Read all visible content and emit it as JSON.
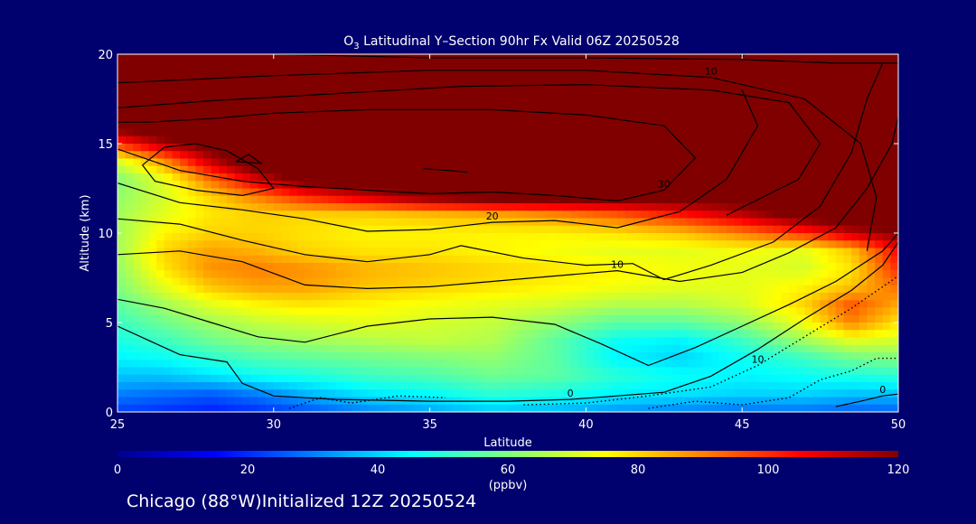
{
  "colors": {
    "background": "#00006e",
    "saturated_high": "#7a0000",
    "contour_line": "#000000"
  },
  "chart_data": {
    "type": "heatmap",
    "title_species": "O",
    "title_subscript": "3",
    "title_rest": " Latitudinal Y–Section 90hr  Fx Valid 06Z 20250528",
    "xlabel": "Latitude",
    "ylabel": "Altitude (km)",
    "xlim": [
      25,
      50
    ],
    "ylim": [
      0,
      20
    ],
    "x_ticks": [
      25,
      30,
      35,
      40,
      45,
      50
    ],
    "x_tick_labels": [
      "25",
      "30",
      "35",
      "40",
      "45",
      "50"
    ],
    "y_ticks": [
      0,
      5,
      10,
      15,
      20
    ],
    "y_tick_labels": [
      "0",
      "5",
      "10",
      "15",
      "20"
    ],
    "colorbar": {
      "min": 0,
      "max": 120,
      "tick_values": [
        0,
        20,
        40,
        60,
        80,
        100,
        120
      ],
      "tick_labels": [
        "0",
        "20",
        "40",
        "60",
        "80",
        "100",
        "120"
      ],
      "unit_label": "(ppbv)"
    },
    "footer": "Chicago (88°W)Initialized 12Z 20250524",
    "field_lat": [
      25,
      26.5,
      28,
      29.5,
      31,
      33,
      35,
      37,
      39,
      41,
      43,
      45,
      47,
      48.5,
      50
    ],
    "field_alt": [
      0,
      1,
      2,
      3,
      4,
      5,
      6,
      7,
      8,
      9,
      10,
      11,
      12,
      13,
      14,
      15,
      16,
      17,
      18,
      19,
      20
    ],
    "field_ppbv": [
      [
        22,
        20,
        18,
        20,
        24,
        30,
        34,
        38,
        36,
        32,
        30,
        28,
        28,
        26,
        26
      ],
      [
        30,
        28,
        26,
        30,
        36,
        42,
        45,
        50,
        48,
        44,
        42,
        40,
        40,
        38,
        38
      ],
      [
        38,
        38,
        42,
        46,
        48,
        52,
        54,
        58,
        56,
        50,
        46,
        44,
        46,
        48,
        50
      ],
      [
        44,
        46,
        50,
        54,
        56,
        58,
        60,
        62,
        56,
        44,
        40,
        46,
        52,
        58,
        60
      ],
      [
        48,
        52,
        58,
        62,
        64,
        66,
        68,
        66,
        56,
        46,
        44,
        52,
        64,
        72,
        70
      ],
      [
        52,
        58,
        64,
        68,
        70,
        72,
        70,
        68,
        62,
        56,
        56,
        62,
        74,
        90,
        78
      ],
      [
        56,
        64,
        72,
        76,
        78,
        76,
        74,
        72,
        70,
        66,
        66,
        70,
        80,
        95,
        85
      ],
      [
        60,
        72,
        82,
        86,
        86,
        82,
        80,
        78,
        76,
        74,
        72,
        72,
        76,
        82,
        92
      ],
      [
        62,
        78,
        88,
        90,
        88,
        84,
        82,
        80,
        78,
        76,
        74,
        72,
        70,
        78,
        100
      ],
      [
        64,
        80,
        86,
        84,
        80,
        78,
        78,
        76,
        74,
        72,
        72,
        74,
        72,
        82,
        105
      ],
      [
        64,
        76,
        80,
        80,
        78,
        76,
        76,
        76,
        76,
        78,
        82,
        90,
        100,
        112,
        120
      ],
      [
        64,
        72,
        78,
        80,
        80,
        80,
        82,
        84,
        88,
        94,
        102,
        112,
        125,
        130,
        130
      ],
      [
        62,
        70,
        80,
        90,
        100,
        110,
        120,
        125,
        125,
        125,
        125,
        125,
        125,
        125,
        125
      ],
      [
        60,
        72,
        92,
        110,
        125,
        130,
        130,
        130,
        130,
        130,
        130,
        130,
        130,
        130,
        130
      ],
      [
        70,
        88,
        112,
        130,
        130,
        130,
        130,
        130,
        130,
        130,
        130,
        130,
        130,
        130,
        130
      ],
      [
        100,
        115,
        125,
        130,
        130,
        130,
        130,
        130,
        130,
        130,
        130,
        130,
        130,
        130,
        130
      ],
      [
        125,
        130,
        130,
        130,
        130,
        130,
        130,
        130,
        130,
        130,
        130,
        130,
        130,
        130,
        130
      ],
      [
        130,
        130,
        130,
        130,
        130,
        130,
        130,
        130,
        130,
        130,
        130,
        130,
        130,
        130,
        130
      ],
      [
        130,
        130,
        130,
        130,
        130,
        130,
        130,
        130,
        130,
        130,
        130,
        130,
        130,
        130,
        130
      ],
      [
        130,
        130,
        130,
        130,
        130,
        130,
        130,
        130,
        130,
        130,
        130,
        130,
        130,
        130,
        130
      ],
      [
        130,
        130,
        130,
        130,
        130,
        130,
        130,
        130,
        130,
        130,
        130,
        130,
        130,
        130,
        130
      ]
    ],
    "contours": [
      {
        "label": "0",
        "style": "solid",
        "points": [
          [
            25,
            4.8
          ],
          [
            26,
            4.0
          ],
          [
            27,
            3.2
          ],
          [
            28.5,
            2.8
          ],
          [
            29,
            1.6
          ],
          [
            30,
            0.9
          ],
          [
            32,
            0.7
          ],
          [
            35,
            0.6
          ],
          [
            37.5,
            0.6
          ],
          [
            39.5,
            0.7
          ],
          [
            41,
            0.9
          ],
          [
            42.5,
            1.1
          ],
          [
            44,
            2.0
          ],
          [
            45.5,
            3.5
          ],
          [
            47,
            5.2
          ],
          [
            48.5,
            6.8
          ],
          [
            49.5,
            8.2
          ],
          [
            50,
            9.5
          ]
        ]
      },
      {
        "label": "",
        "style": "solid",
        "points": [
          [
            25,
            6.3
          ],
          [
            26.5,
            5.8
          ],
          [
            28,
            5.0
          ],
          [
            29.5,
            4.2
          ],
          [
            31,
            3.9
          ],
          [
            33,
            4.8
          ],
          [
            35,
            5.2
          ],
          [
            37,
            5.3
          ],
          [
            39,
            4.9
          ],
          [
            40.5,
            3.8
          ],
          [
            42,
            2.6
          ],
          [
            43.5,
            3.6
          ],
          [
            45,
            4.8
          ],
          [
            46.5,
            6.0
          ],
          [
            48,
            7.3
          ],
          [
            49.5,
            9.0
          ],
          [
            50,
            10.0
          ]
        ]
      },
      {
        "label": "10",
        "style": "solid",
        "points": [
          [
            25,
            8.8
          ],
          [
            27,
            9.0
          ],
          [
            29,
            8.4
          ],
          [
            31,
            7.1
          ],
          [
            33,
            6.9
          ],
          [
            35,
            7.0
          ],
          [
            37,
            7.3
          ],
          [
            39,
            7.6
          ],
          [
            41,
            7.9
          ],
          [
            43,
            7.3
          ],
          [
            45,
            7.8
          ],
          [
            46.5,
            8.9
          ],
          [
            48,
            10.3
          ],
          [
            49,
            12.5
          ],
          [
            49.8,
            15.0
          ],
          [
            50,
            16.5
          ]
        ]
      },
      {
        "label": "",
        "style": "solid",
        "points": [
          [
            25,
            10.8
          ],
          [
            27,
            10.5
          ],
          [
            29,
            9.6
          ],
          [
            31,
            8.8
          ],
          [
            33,
            8.4
          ],
          [
            35,
            8.8
          ],
          [
            36,
            9.3
          ],
          [
            38,
            8.6
          ],
          [
            40,
            8.2
          ],
          [
            41.5,
            8.3
          ],
          [
            42.5,
            7.4
          ],
          [
            44,
            8.2
          ],
          [
            46,
            9.5
          ],
          [
            47.5,
            11.5
          ],
          [
            48.5,
            14.5
          ],
          [
            49,
            17.5
          ],
          [
            49.5,
            19.5
          ]
        ]
      },
      {
        "label": "20",
        "style": "solid",
        "points": [
          [
            25,
            12.8
          ],
          [
            27,
            11.7
          ],
          [
            29,
            11.3
          ],
          [
            31,
            10.8
          ],
          [
            33,
            10.1
          ],
          [
            35,
            10.2
          ],
          [
            37,
            10.6
          ],
          [
            39,
            10.7
          ],
          [
            41,
            10.3
          ],
          [
            43,
            11.2
          ],
          [
            44.5,
            13.0
          ],
          [
            45.5,
            16.0
          ],
          [
            45,
            18.0
          ]
        ]
      },
      {
        "label": "30",
        "style": "solid",
        "points": [
          [
            25,
            14.7
          ],
          [
            27,
            13.5
          ],
          [
            29,
            12.9
          ],
          [
            31,
            12.6
          ],
          [
            33,
            12.4
          ],
          [
            35,
            12.2
          ],
          [
            37,
            12.3
          ],
          [
            39,
            12.1
          ],
          [
            41,
            11.8
          ],
          [
            42.5,
            12.4
          ],
          [
            43.5,
            14.2
          ],
          [
            42.5,
            16.0
          ],
          [
            40,
            16.6
          ],
          [
            37,
            16.9
          ],
          [
            33,
            16.9
          ],
          [
            30,
            16.7
          ],
          [
            28,
            16.4
          ],
          [
            26,
            16.2
          ],
          [
            25,
            16.2
          ]
        ]
      },
      {
        "label": "",
        "style": "solid",
        "points": [
          [
            25,
            17.0
          ],
          [
            28,
            17.4
          ],
          [
            32,
            17.8
          ],
          [
            36,
            18.2
          ],
          [
            40,
            18.3
          ],
          [
            44,
            18.0
          ],
          [
            46.5,
            17.3
          ],
          [
            47.5,
            15.0
          ],
          [
            46.8,
            13.0
          ],
          [
            44.5,
            11.0
          ]
        ]
      },
      {
        "label": "10",
        "style": "solid",
        "points": [
          [
            25,
            18.4
          ],
          [
            30,
            18.8
          ],
          [
            35,
            19.1
          ],
          [
            40,
            19.1
          ],
          [
            44,
            18.7
          ],
          [
            47,
            17.5
          ],
          [
            48.8,
            15.0
          ],
          [
            49.3,
            12.0
          ],
          [
            49.0,
            9.0
          ]
        ]
      },
      {
        "label": "0",
        "style": "solid",
        "points": [
          [
            30,
            20.0
          ],
          [
            35,
            19.8
          ],
          [
            40,
            19.8
          ],
          [
            45,
            19.7
          ],
          [
            48,
            19.5
          ],
          [
            50,
            19.5
          ]
        ]
      },
      {
        "label": "",
        "style": "solid",
        "points": [
          [
            25.8,
            13.8
          ],
          [
            26.5,
            14.8
          ],
          [
            27.5,
            15.0
          ],
          [
            28.5,
            14.6
          ],
          [
            29.5,
            13.6
          ],
          [
            30,
            12.5
          ],
          [
            29.0,
            12.1
          ],
          [
            27.5,
            12.4
          ],
          [
            26.2,
            12.9
          ],
          [
            25.8,
            13.8
          ]
        ]
      },
      {
        "label": "",
        "style": "solid",
        "points": [
          [
            28.8,
            14.0
          ],
          [
            29.2,
            14.4
          ],
          [
            29.6,
            13.9
          ],
          [
            28.8,
            14.0
          ]
        ]
      },
      {
        "label": "",
        "style": "solid",
        "points": [
          [
            34.8,
            13.6
          ],
          [
            35.6,
            13.5
          ],
          [
            36.2,
            13.4
          ]
        ]
      },
      {
        "label": "10",
        "style": "dotted",
        "points": [
          [
            38,
            0.4
          ],
          [
            40,
            0.5
          ],
          [
            42,
            0.9
          ],
          [
            44,
            1.4
          ],
          [
            45.5,
            2.6
          ],
          [
            47,
            4.2
          ],
          [
            48.5,
            5.8
          ],
          [
            50,
            7.6
          ]
        ]
      },
      {
        "label": "",
        "style": "dotted",
        "points": [
          [
            30.5,
            0.2
          ],
          [
            31.5,
            0.8
          ],
          [
            32.5,
            0.5
          ],
          [
            34,
            0.9
          ],
          [
            35.5,
            0.8
          ]
        ]
      },
      {
        "label": "",
        "style": "dotted",
        "points": [
          [
            42,
            0.2
          ],
          [
            43.5,
            0.6
          ],
          [
            45,
            0.4
          ],
          [
            46.5,
            0.8
          ],
          [
            47.5,
            1.8
          ],
          [
            48.5,
            2.3
          ],
          [
            49.3,
            3.0
          ],
          [
            50,
            3.0
          ]
        ]
      },
      {
        "label": "0",
        "style": "solid",
        "points": [
          [
            48,
            0.3
          ],
          [
            48.8,
            0.6
          ],
          [
            49.5,
            0.9
          ],
          [
            50,
            1.0
          ]
        ]
      }
    ]
  }
}
